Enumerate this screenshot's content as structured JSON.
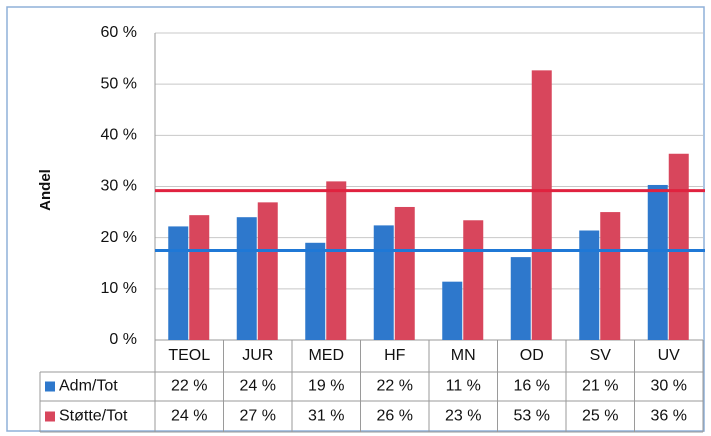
{
  "chart_data": {
    "type": "bar",
    "y_label": "Andel",
    "categories": [
      "TEOL",
      "JUR",
      "MED",
      "HF",
      "MN",
      "OD",
      "SV",
      "UV"
    ],
    "series": [
      {
        "name": "Adm/Tot",
        "color": "#2e78cc",
        "values": [
          22.2,
          24,
          19,
          22.4,
          11.4,
          16.2,
          21.4,
          30.3
        ],
        "value_labels": [
          "22 %",
          "24 %",
          "19 %",
          "22 %",
          "11 %",
          "16 %",
          "21 %",
          "30 %"
        ]
      },
      {
        "name": "Støtte/Tot",
        "color": "#d8465c",
        "values": [
          24.4,
          26.9,
          31,
          26,
          23.4,
          52.7,
          25,
          36.4
        ],
        "value_labels": [
          "24 %",
          "27 %",
          "31 %",
          "26 %",
          "23 %",
          "53 %",
          "25 %",
          "36 %"
        ]
      }
    ],
    "reference_lines": [
      {
        "value": 17.5,
        "color": "#1f78d6"
      },
      {
        "value": 29.2,
        "color": "#e0223f"
      }
    ],
    "ylim": [
      0,
      60
    ],
    "yticks": [
      {
        "value": 0,
        "label": "0 %"
      },
      {
        "value": 10,
        "label": "10 %"
      },
      {
        "value": 20,
        "label": "20 %"
      },
      {
        "value": 30,
        "label": "30 %"
      },
      {
        "value": 40,
        "label": "40 %"
      },
      {
        "value": 50,
        "label": "50 %"
      },
      {
        "value": 60,
        "label": "60 %"
      }
    ],
    "grid": true
  }
}
